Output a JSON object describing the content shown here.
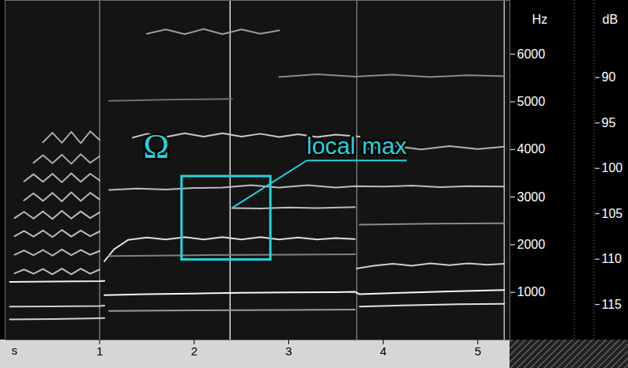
{
  "chart_data": {
    "type": "spectrogram",
    "xlabel": "s",
    "ylabel": "Hz",
    "y2label": "dB",
    "xlim": [
      0,
      5.34
    ],
    "xticks": [
      1,
      2,
      3,
      4,
      5
    ],
    "ylim": [
      0,
      7130
    ],
    "yticks": [
      1000,
      2000,
      3000,
      4000,
      5000,
      6000
    ],
    "y2lim": [
      81.5,
      118.9
    ],
    "y2ticks": [
      90,
      95,
      100,
      105,
      110,
      115
    ],
    "series": [
      {
        "color": "#eeeeee",
        "x": [
          0.05,
          0.5,
          1.0,
          1.05
        ],
        "values": [
          1220,
          1225,
          1235,
          1240
        ]
      },
      {
        "color": "#f5f5f5",
        "x": [
          1.05,
          1.5,
          2.0,
          2.5,
          3.0,
          3.5,
          3.7,
          3.75,
          4.2,
          4.7,
          5.28
        ],
        "values": [
          940,
          960,
          975,
          990,
          1000,
          1005,
          1010,
          960,
          990,
          1020,
          1050
        ]
      },
      {
        "color": "#cfcfcf",
        "x": [
          0.05,
          0.5,
          1.0,
          1.05
        ],
        "values": [
          700,
          705,
          715,
          720
        ]
      },
      {
        "color": "#9a9a9a",
        "x": [
          1.1,
          2.0,
          3.0,
          3.7
        ],
        "values": [
          610,
          620,
          630,
          640
        ]
      },
      {
        "color": "#e0e0e0",
        "x": [
          3.75,
          4.3,
          4.8,
          5.28
        ],
        "values": [
          700,
          730,
          750,
          760
        ]
      },
      {
        "color": "#d0d0d0",
        "x": [
          0.05,
          0.5,
          0.9,
          1.05
        ],
        "values": [
          430,
          440,
          450,
          460
        ]
      },
      {
        "color": "#bbbbbb",
        "x": [
          0.1,
          0.2,
          0.3,
          0.4,
          0.5,
          0.6,
          0.7,
          0.8,
          0.9,
          1.0
        ],
        "values": [
          1400,
          1480,
          1390,
          1490,
          1380,
          1500,
          1380,
          1500,
          1390,
          1480
        ]
      },
      {
        "color": "#bbbbbb",
        "x": [
          0.1,
          0.2,
          0.3,
          0.4,
          0.5,
          0.6,
          0.7,
          0.8,
          0.9,
          1.0
        ],
        "values": [
          1790,
          1880,
          1780,
          1890,
          1770,
          1900,
          1780,
          1890,
          1790,
          1870
        ]
      },
      {
        "color": "#bbbbbb",
        "x": [
          0.1,
          0.2,
          0.3,
          0.4,
          0.5,
          0.6,
          0.7,
          0.8,
          0.9,
          1.0
        ],
        "values": [
          2180,
          2290,
          2170,
          2300,
          2160,
          2310,
          2170,
          2300,
          2180,
          2280
        ]
      },
      {
        "color": "#bbbbbb",
        "x": [
          0.1,
          0.2,
          0.3,
          0.4,
          0.5,
          0.6,
          0.7,
          0.8,
          0.9,
          1.0
        ],
        "values": [
          2560,
          2690,
          2550,
          2700,
          2540,
          2710,
          2550,
          2700,
          2560,
          2680
        ]
      },
      {
        "color": "#b5b5b5",
        "x": [
          0.2,
          0.3,
          0.4,
          0.5,
          0.6,
          0.7,
          0.8,
          0.9,
          1.0
        ],
        "values": [
          2930,
          3080,
          2920,
          3090,
          2910,
          3100,
          2920,
          3090,
          2950
        ]
      },
      {
        "color": "#b5b5b5",
        "x": [
          0.2,
          0.3,
          0.4,
          0.5,
          0.6,
          0.7,
          0.8,
          0.9,
          1.0
        ],
        "values": [
          3330,
          3480,
          3320,
          3490,
          3310,
          3500,
          3320,
          3490,
          3350
        ]
      },
      {
        "color": "#aaaaaa",
        "x": [
          0.3,
          0.4,
          0.5,
          0.6,
          0.7,
          0.8,
          0.9,
          1.0
        ],
        "values": [
          3720,
          3880,
          3710,
          3890,
          3700,
          3900,
          3720,
          3860
        ]
      },
      {
        "color": "#aaaaaa",
        "x": [
          0.4,
          0.5,
          0.6,
          0.7,
          0.8,
          0.9,
          1.0
        ],
        "values": [
          4150,
          4350,
          4140,
          4370,
          4130,
          4380,
          4200
        ]
      },
      {
        "color": "#dddddd",
        "x": [
          1.05,
          1.15,
          1.3,
          1.5,
          1.7,
          1.9,
          2.1,
          2.3,
          2.5,
          2.7,
          2.9,
          3.1,
          3.3,
          3.5,
          3.7
        ],
        "values": [
          1650,
          1900,
          2100,
          2150,
          2110,
          2160,
          2110,
          2160,
          2110,
          2160,
          2110,
          2150,
          2110,
          2140,
          2120
        ]
      },
      {
        "color": "#cccccc",
        "x": [
          3.72,
          3.9,
          4.1,
          4.3,
          4.5,
          4.7,
          4.9,
          5.1,
          5.28
        ],
        "values": [
          1500,
          1560,
          1600,
          1560,
          1610,
          1570,
          1610,
          1580,
          1600
        ]
      },
      {
        "color": "#808080",
        "x": [
          1.1,
          2.0,
          3.0,
          3.7
        ],
        "values": [
          1760,
          1780,
          1790,
          1800
        ]
      },
      {
        "color": "#bdbdbd",
        "x": [
          2.4,
          2.7,
          3.0,
          3.3,
          3.7
        ],
        "values": [
          2770,
          2760,
          2780,
          2770,
          2790
        ]
      },
      {
        "color": "#bbbbbb",
        "x": [
          1.1,
          1.4,
          1.7,
          2.0,
          2.3,
          2.6,
          2.9,
          3.2,
          3.5,
          3.7,
          4.0,
          4.3,
          4.6,
          4.9,
          5.28
        ],
        "values": [
          3150,
          3180,
          3160,
          3190,
          3200,
          3250,
          3200,
          3250,
          3200,
          3230,
          3220,
          3240,
          3210,
          3230,
          3220
        ]
      },
      {
        "color": "#c8c8c8",
        "x": [
          1.35,
          1.5,
          1.7,
          1.9,
          2.1,
          2.3,
          2.5,
          2.7,
          2.9,
          3.1,
          3.3,
          3.5,
          3.75
        ],
        "values": [
          4250,
          4330,
          4260,
          4340,
          4270,
          4340,
          4270,
          4330,
          4260,
          4320,
          4260,
          4310,
          4270
        ]
      },
      {
        "color": "#b0b0b0",
        "x": [
          3.8,
          4.1,
          4.4,
          4.7,
          5.0,
          5.28
        ],
        "values": [
          4000,
          4080,
          4000,
          4070,
          4010,
          4060
        ]
      },
      {
        "color": "#8a8a8a",
        "x": [
          3.75,
          4.5,
          5.28
        ],
        "values": [
          2420,
          2440,
          2450
        ]
      },
      {
        "color": "#8a8a8a",
        "x": [
          2.9,
          3.3,
          3.7,
          4.1,
          4.5,
          4.9,
          5.28
        ],
        "values": [
          5520,
          5580,
          5530,
          5570,
          5520,
          5560,
          5540
        ]
      },
      {
        "color": "#9a9a9a",
        "x": [
          1.5,
          1.7,
          1.9,
          2.1,
          2.3,
          2.5,
          2.7,
          2.9
        ],
        "values": [
          6430,
          6520,
          6420,
          6530,
          6420,
          6520,
          6430,
          6500
        ]
      },
      {
        "color": "#707070",
        "x": [
          1.1,
          1.8,
          2.4
        ],
        "values": [
          5020,
          5050,
          5060
        ]
      }
    ],
    "vertical_lines": [
      {
        "x": 1.0,
        "color": "#777777"
      },
      {
        "x": 2.38,
        "color": "#dddddd"
      },
      {
        "x": 3.72,
        "color": "#777777"
      },
      {
        "x": 5.28,
        "color": "#bbbbbb"
      }
    ],
    "annotations": [
      {
        "type": "box",
        "x": [
          1.87,
          2.81
        ],
        "y": [
          1683,
          3433
        ],
        "color": "#22d3dd"
      },
      {
        "text": "Ω",
        "x": 1.6,
        "y": 4060,
        "color": "#22d3dd"
      },
      {
        "text": "local max",
        "x": 3.19,
        "y": 4060,
        "target": {
          "x": 2.41,
          "y": 2770
        },
        "color": "#22d3dd"
      }
    ]
  }
}
